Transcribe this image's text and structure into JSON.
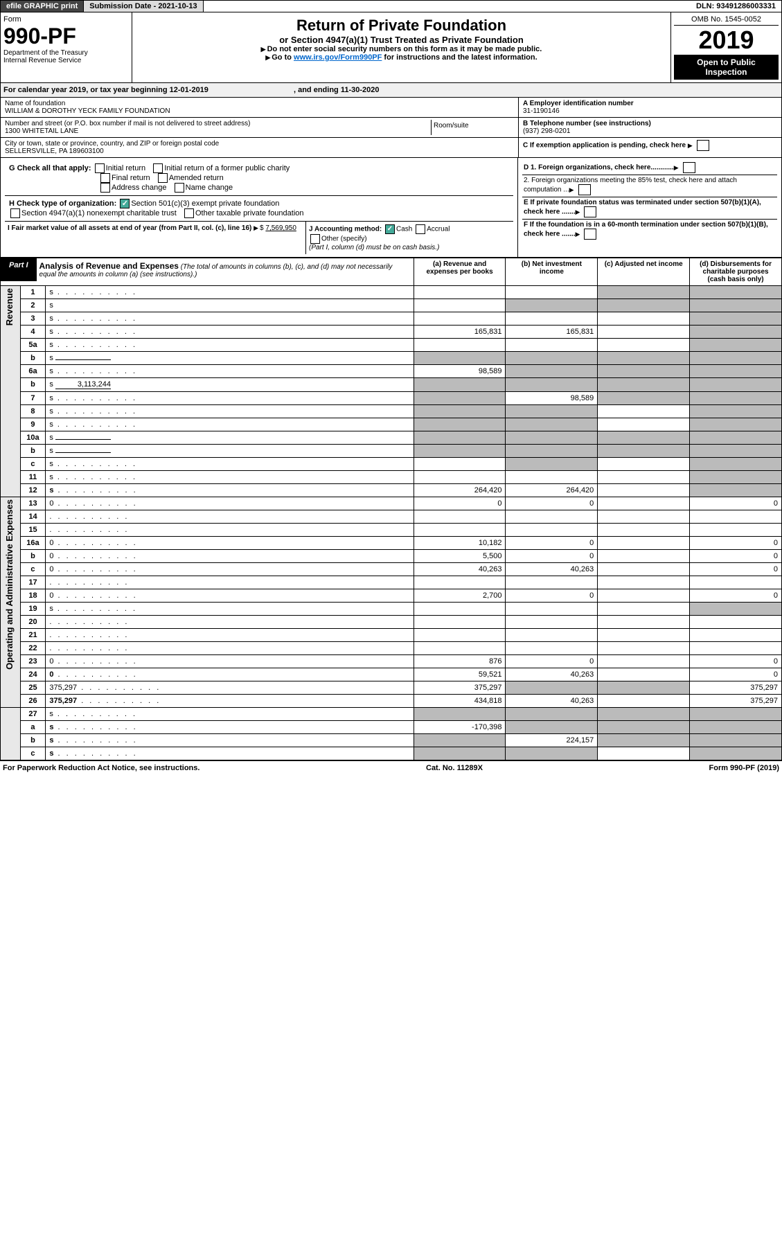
{
  "top": {
    "efile": "efile GRAPHIC print",
    "sub_date_label": "Submission Date - 2021-10-13",
    "dln": "DLN: 93491286003331"
  },
  "header": {
    "form_label": "Form",
    "form_num": "990-PF",
    "dept": "Department of the Treasury\nInternal Revenue Service",
    "title": "Return of Private Foundation",
    "subtitle": "or Section 4947(a)(1) Trust Treated as Private Foundation",
    "instr1": "Do not enter social security numbers on this form as it may be made public.",
    "instr2_pre": "Go to ",
    "instr2_link": "www.irs.gov/Form990PF",
    "instr2_post": " for instructions and the latest information.",
    "omb": "OMB No. 1545-0052",
    "year": "2019",
    "open": "Open to Public Inspection"
  },
  "cal": {
    "text": "For calendar year 2019, or tax year beginning 12-01-2019",
    "end": ", and ending 11-30-2020"
  },
  "identity": {
    "name_label": "Name of foundation",
    "name": "WILLIAM & DOROTHY YECK FAMILY FOUNDATION",
    "addr_label": "Number and street (or P.O. box number if mail is not delivered to street address)",
    "addr": "1300 WHITETAIL LANE",
    "room_label": "Room/suite",
    "city_label": "City or town, state or province, country, and ZIP or foreign postal code",
    "city": "SELLERSVILLE, PA  189603100",
    "a_label": "A Employer identification number",
    "a_val": "31-1190146",
    "b_label": "B Telephone number (see instructions)",
    "b_val": "(937) 298-0201",
    "c_label": "C If exemption application is pending, check here"
  },
  "checks": {
    "g_label": "G Check all that apply:",
    "g1": "Initial return",
    "g2": "Initial return of a former public charity",
    "g3": "Final return",
    "g4": "Amended return",
    "g5": "Address change",
    "g6": "Name change",
    "h_label": "H Check type of organization:",
    "h1": "Section 501(c)(3) exempt private foundation",
    "h2": "Section 4947(a)(1) nonexempt charitable trust",
    "h3": "Other taxable private foundation",
    "i_label": "I Fair market value of all assets at end of year (from Part II, col. (c), line 16)",
    "i_val": "7,569,950",
    "j_label": "J Accounting method:",
    "j1": "Cash",
    "j2": "Accrual",
    "j3": "Other (specify)",
    "j_note": "(Part I, column (d) must be on cash basis.)",
    "d1": "D 1. Foreign organizations, check here............",
    "d2": "2. Foreign organizations meeting the 85% test, check here and attach computation ...",
    "e": "E  If private foundation status was terminated under section 507(b)(1)(A), check here .......",
    "f": "F  If the foundation is in a 60-month termination under section 507(b)(1)(B), check here ......."
  },
  "part1": {
    "tag": "Part I",
    "title": "Analysis of Revenue and Expenses",
    "note": "(The total of amounts in columns (b), (c), and (d) may not necessarily equal the amounts in column (a) (see instructions).)",
    "col_a": "(a)   Revenue and expenses per books",
    "col_b": "(b)  Net investment income",
    "col_c": "(c)  Adjusted net income",
    "col_d": "(d)  Disbursements for charitable purposes (cash basis only)"
  },
  "rows": [
    {
      "n": "1",
      "d": "s",
      "a": "",
      "b": "",
      "c": "s"
    },
    {
      "n": "2",
      "d": "s",
      "a": "",
      "b": "s",
      "c": "s",
      "nodots": true
    },
    {
      "n": "3",
      "d": "s",
      "a": "",
      "b": "",
      "c": ""
    },
    {
      "n": "4",
      "d": "s",
      "a": "165,831",
      "b": "165,831",
      "c": ""
    },
    {
      "n": "5a",
      "d": "s",
      "a": "",
      "b": "",
      "c": ""
    },
    {
      "n": "b",
      "d": "s",
      "a": "s",
      "b": "s",
      "c": "s",
      "inline": true
    },
    {
      "n": "6a",
      "d": "s",
      "a": "98,589",
      "b": "s",
      "c": "s"
    },
    {
      "n": "b",
      "d": "s",
      "a": "s",
      "b": "s",
      "c": "s",
      "inline": true,
      "inlineval": "3,113,244"
    },
    {
      "n": "7",
      "d": "s",
      "a": "s",
      "b": "98,589",
      "c": "s"
    },
    {
      "n": "8",
      "d": "s",
      "a": "s",
      "b": "s",
      "c": ""
    },
    {
      "n": "9",
      "d": "s",
      "a": "s",
      "b": "s",
      "c": ""
    },
    {
      "n": "10a",
      "d": "s",
      "a": "s",
      "b": "s",
      "c": "s",
      "inline": true
    },
    {
      "n": "b",
      "d": "s",
      "a": "s",
      "b": "s",
      "c": "s",
      "inline": true
    },
    {
      "n": "c",
      "d": "s",
      "a": "",
      "b": "s",
      "c": ""
    },
    {
      "n": "11",
      "d": "s",
      "a": "",
      "b": "",
      "c": ""
    },
    {
      "n": "12",
      "d": "s",
      "a": "264,420",
      "b": "264,420",
      "c": "",
      "bold": true
    }
  ],
  "exp_rows": [
    {
      "n": "13",
      "d": "0",
      "a": "0",
      "b": "0",
      "c": ""
    },
    {
      "n": "14",
      "d": "",
      "a": "",
      "b": "",
      "c": ""
    },
    {
      "n": "15",
      "d": "",
      "a": "",
      "b": "",
      "c": ""
    },
    {
      "n": "16a",
      "d": "0",
      "a": "10,182",
      "b": "0",
      "c": ""
    },
    {
      "n": "b",
      "d": "0",
      "a": "5,500",
      "b": "0",
      "c": ""
    },
    {
      "n": "c",
      "d": "0",
      "a": "40,263",
      "b": "40,263",
      "c": ""
    },
    {
      "n": "17",
      "d": "",
      "a": "",
      "b": "",
      "c": ""
    },
    {
      "n": "18",
      "d": "0",
      "a": "2,700",
      "b": "0",
      "c": ""
    },
    {
      "n": "19",
      "d": "s",
      "a": "",
      "b": "",
      "c": ""
    },
    {
      "n": "20",
      "d": "",
      "a": "",
      "b": "",
      "c": ""
    },
    {
      "n": "21",
      "d": "",
      "a": "",
      "b": "",
      "c": ""
    },
    {
      "n": "22",
      "d": "",
      "a": "",
      "b": "",
      "c": ""
    },
    {
      "n": "23",
      "d": "0",
      "a": "876",
      "b": "0",
      "c": ""
    },
    {
      "n": "24",
      "d": "0",
      "a": "59,521",
      "b": "40,263",
      "c": "",
      "bold": true
    },
    {
      "n": "25",
      "d": "375,297",
      "a": "375,297",
      "b": "s",
      "c": "s"
    },
    {
      "n": "26",
      "d": "375,297",
      "a": "434,818",
      "b": "40,263",
      "c": "",
      "bold": true
    }
  ],
  "sub_rows": [
    {
      "n": "27",
      "d": "s",
      "a": "s",
      "b": "s",
      "c": "s"
    },
    {
      "n": "a",
      "d": "s",
      "a": "-170,398",
      "b": "s",
      "c": "s",
      "bold": true
    },
    {
      "n": "b",
      "d": "s",
      "a": "s",
      "b": "224,157",
      "c": "s",
      "bold": true
    },
    {
      "n": "c",
      "d": "s",
      "a": "s",
      "b": "s",
      "c": "",
      "bold": true
    }
  ],
  "side": {
    "rev": "Revenue",
    "exp": "Operating and Administrative Expenses"
  },
  "footer": {
    "left": "For Paperwork Reduction Act Notice, see instructions.",
    "mid": "Cat. No. 11289X",
    "right": "Form 990-PF (2019)"
  }
}
